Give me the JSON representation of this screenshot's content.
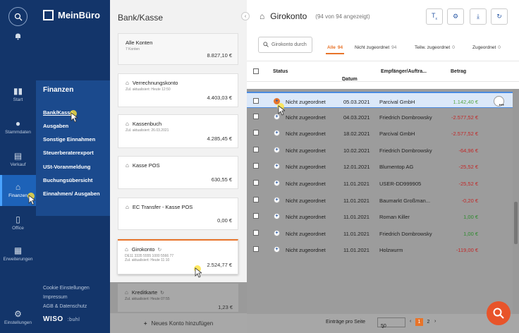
{
  "app": {
    "logo_text": "MeinBüro",
    "wiso_label": "WISO",
    "wiso_suffix": ":buhl"
  },
  "rail": {
    "items": [
      {
        "label": "Start",
        "icon": "chart-icon"
      },
      {
        "label": "Stammdaten",
        "icon": "person-icon"
      },
      {
        "label": "Verkauf",
        "icon": "document-icon"
      },
      {
        "label": "Finanzen",
        "icon": "bank-icon",
        "active": true
      },
      {
        "label": "Office",
        "icon": "phone-icon"
      },
      {
        "label": "Erweiterungen",
        "icon": "grid-icon"
      },
      {
        "label": "Einstellungen",
        "icon": "gear-icon"
      }
    ]
  },
  "finanzen": {
    "title": "Finanzen",
    "items": [
      "Bank/Kasse",
      "Ausgaben",
      "Sonstige Einnahmen",
      "Steuerberaterexport",
      "USt-Voranmeldung",
      "Buchungsübersicht",
      "Einnahmen/ Ausgaben"
    ],
    "footer": [
      "Cookie Einstellungen",
      "Impressum",
      "AGB & Datenschutz"
    ]
  },
  "bank": {
    "title": "Bank/Kasse",
    "accounts": [
      {
        "name": "Alle Konten",
        "sub": "7 Konten",
        "amount": "8.827,10 €"
      },
      {
        "name": "Verrechnungskonto",
        "sub": "Zul. aktualisiert: Heute 12:50",
        "amount": "4.403,03 €"
      },
      {
        "name": "Kassenbuch",
        "sub": "Zul. aktualisiert: 26.03.2021",
        "amount": "4.285,45 €"
      },
      {
        "name": "Kasse POS",
        "sub": "",
        "amount": "630,55 €"
      },
      {
        "name": "EC Transfer - Kasse POS",
        "sub": "",
        "amount": "0,00 €"
      },
      {
        "name": "Girokonto",
        "sub": "DE11 3335 5555 1000 5566 77",
        "sub2": "Zul. aktualisiert: Heute 11:10",
        "amount": "2.524,77 €"
      },
      {
        "name": "Kreditkarte",
        "sub": "Zul. aktualisiert: Heute 07:55",
        "amount": "1,23 €"
      }
    ],
    "new_account": "Neues Konto hinzufügen"
  },
  "main": {
    "title": "Girokonto",
    "count": "(94 von 94 angezeigt)",
    "search_placeholder": "Girokonto durch",
    "tabs": [
      {
        "label": "Alle",
        "count": "94"
      },
      {
        "label": "Nicht zugeordnet",
        "count": "94"
      },
      {
        "label": "Teilw. zugeordnet",
        "count": "0"
      },
      {
        "label": "Zugeordnet",
        "count": "0"
      }
    ],
    "columns": {
      "status": "Status",
      "datum": "Datum",
      "empf": "Empfänger/Auftra...",
      "betrag": "Betrag"
    },
    "rows": [
      {
        "status": "Nicht zugeordnet",
        "date": "05.03.2021",
        "payee": "Parcival GmbH",
        "amount": "1.142,40 €",
        "sign": "pos"
      },
      {
        "status": "Nicht zugeordnet",
        "date": "04.03.2021",
        "payee": "Friedrich Dombrowsky",
        "amount": "-2.577,52 €",
        "sign": "neg"
      },
      {
        "status": "Nicht zugeordnet",
        "date": "18.02.2021",
        "payee": "Parcival GmbH",
        "amount": "-2.577,52 €",
        "sign": "neg"
      },
      {
        "status": "Nicht zugeordnet",
        "date": "10.02.2021",
        "payee": "Friedrich Dombrowsky",
        "amount": "-64,96 €",
        "sign": "neg"
      },
      {
        "status": "Nicht zugeordnet",
        "date": "12.01.2021",
        "payee": "Blumentop AG",
        "amount": "-25,52 €",
        "sign": "neg"
      },
      {
        "status": "Nicht zugeordnet",
        "date": "11.01.2021",
        "payee": "USER-DD999905",
        "amount": "-25,52 €",
        "sign": "neg"
      },
      {
        "status": "Nicht zugeordnet",
        "date": "11.01.2021",
        "payee": "Baumarkt Großman...",
        "amount": "-0,20 €",
        "sign": "neg"
      },
      {
        "status": "Nicht zugeordnet",
        "date": "11.01.2021",
        "payee": "Roman Killer",
        "amount": "1,00 €",
        "sign": "pos"
      },
      {
        "status": "Nicht zugeordnet",
        "date": "11.01.2021",
        "payee": "Friedrich Dombrowsky",
        "amount": "1,00 €",
        "sign": "pos"
      },
      {
        "status": "Nicht zugeordnet",
        "date": "11.01.2021",
        "payee": "Holzwurm",
        "amount": "-119,00 €",
        "sign": "neg"
      }
    ],
    "pager": {
      "label": "Einträge pro Seite",
      "per_page": "50",
      "pages": [
        "1",
        "2"
      ]
    }
  }
}
